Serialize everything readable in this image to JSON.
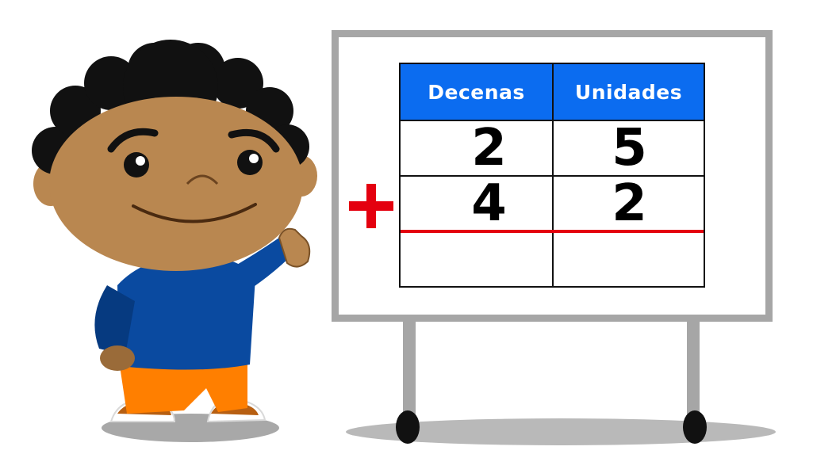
{
  "table": {
    "headers": {
      "tens": "Decenas",
      "units": "Unidades"
    },
    "rows": [
      {
        "tens": "2",
        "units": "5"
      },
      {
        "tens": "4",
        "units": "2"
      },
      {
        "tens": "",
        "units": ""
      }
    ],
    "header_color": "#0b6cf0",
    "line_color": "#e4000f"
  },
  "operator": {
    "icon": "plus-icon",
    "color": "#e4000f"
  },
  "character": {
    "icon": "boy-character",
    "shirt_color": "#0a4aa0",
    "pants_color": "#ff7f00",
    "skin_color": "#b98750"
  }
}
